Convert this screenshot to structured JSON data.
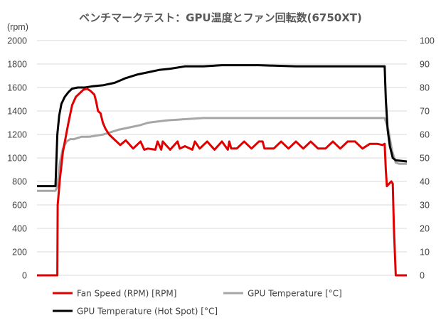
{
  "chart_data": {
    "type": "line",
    "title": "ベンチマークテスト：GPU温度とファン回転数(6750XT)",
    "ylabel_left": "(rpm)",
    "ylim_left": [
      0,
      2000
    ],
    "yticks_left": [
      "0",
      "200",
      "400",
      "600",
      "800",
      "1000",
      "1200",
      "1400",
      "1600",
      "1800",
      "2000"
    ],
    "ylim_right": [
      0,
      100
    ],
    "yticks_right": [
      "0",
      "10",
      "20",
      "30",
      "40",
      "50",
      "60",
      "70",
      "80",
      "90",
      "100"
    ],
    "xlim": [
      0,
      100
    ],
    "grid": true,
    "legend_position": "bottom",
    "series": [
      {
        "name": "Fan Speed (RPM) [RPM]",
        "axis": "left",
        "color": "#e00000",
        "x": [
          0,
          5.5,
          5.6,
          6.2,
          7,
          8.5,
          9.5,
          10.5,
          11.5,
          12.5,
          13.5,
          14.5,
          15.5,
          16,
          16.5,
          17.2,
          17.8,
          18.5,
          19.5,
          20.5,
          21.5,
          22.5,
          24,
          26,
          28,
          29,
          30,
          32,
          32.6,
          33.6,
          34,
          36,
          38,
          38.6,
          40,
          42,
          42.7,
          44,
          46,
          48,
          50,
          51.6,
          52,
          52.5,
          54,
          56,
          58,
          60,
          61,
          61.5,
          62,
          64,
          66,
          68,
          70,
          72,
          74,
          76,
          78,
          80,
          82,
          84,
          86,
          88,
          90,
          92,
          93.4,
          94,
          94.3,
          94.6,
          95.2,
          95.8,
          96.2,
          96.5,
          97,
          100
        ],
        "y": [
          0,
          0,
          600,
          820,
          1050,
          1300,
          1450,
          1520,
          1550,
          1580,
          1590,
          1570,
          1540,
          1480,
          1400,
          1380,
          1300,
          1250,
          1200,
          1170,
          1140,
          1110,
          1150,
          1080,
          1140,
          1070,
          1080,
          1070,
          1140,
          1070,
          1140,
          1070,
          1140,
          1080,
          1100,
          1070,
          1140,
          1080,
          1140,
          1070,
          1140,
          1070,
          1140,
          1080,
          1080,
          1140,
          1080,
          1140,
          1140,
          1080,
          1080,
          1080,
          1140,
          1080,
          1140,
          1080,
          1140,
          1080,
          1080,
          1140,
          1080,
          1140,
          1140,
          1080,
          1120,
          1120,
          1110,
          1120,
          900,
          760,
          780,
          800,
          780,
          400,
          0,
          0
        ]
      },
      {
        "name": "GPU Temperature [°C]",
        "axis": "right",
        "color": "#a6a6a6",
        "x": [
          0,
          5,
          5.5,
          6.2,
          7,
          8,
          9,
          10,
          12,
          14,
          16,
          18,
          20,
          22,
          25,
          28,
          30,
          35,
          40,
          45,
          50,
          55,
          60,
          70,
          80,
          90,
          94,
          95,
          96,
          97,
          98,
          100
        ],
        "y": [
          36,
          36,
          38,
          48,
          54,
          57,
          58,
          58,
          59,
          59,
          59.5,
          60,
          61,
          62,
          63,
          64,
          65,
          66,
          66.5,
          67,
          67,
          67,
          67,
          67,
          67,
          67,
          67,
          62,
          53,
          48,
          47.5,
          47.5
        ]
      },
      {
        "name": "GPU Temperature (Hot Spot) [°C]",
        "axis": "right",
        "color": "#000000",
        "x": [
          0,
          5,
          5.5,
          6,
          6.6,
          7.5,
          8.5,
          9.5,
          11,
          13,
          15,
          18,
          21,
          24,
          27,
          30,
          33,
          36,
          40,
          45,
          50,
          55,
          60,
          70,
          80,
          90,
          94,
          94.3,
          94.8,
          95.4,
          96.2,
          97,
          100
        ],
        "y": [
          38,
          38,
          60,
          68,
          73,
          76,
          78,
          79.5,
          80,
          80,
          80.5,
          81,
          82,
          84,
          85.5,
          86.5,
          87.5,
          88,
          89,
          89,
          89.5,
          89.5,
          89.5,
          89,
          89,
          89,
          89,
          75,
          62,
          55,
          50,
          49,
          48.5
        ]
      }
    ]
  }
}
